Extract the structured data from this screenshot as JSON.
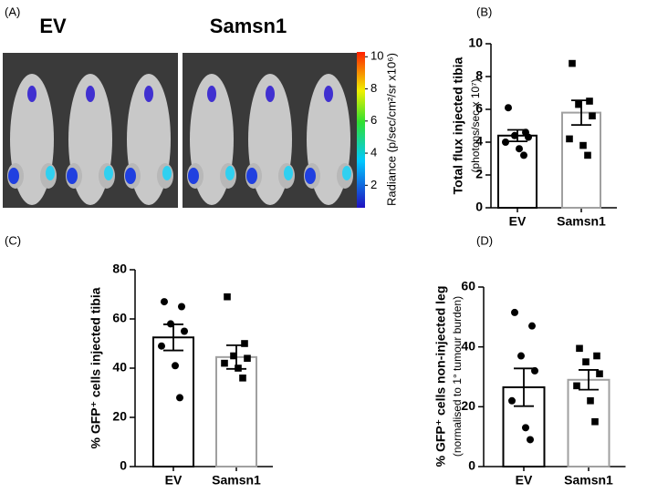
{
  "chart_data": [
    {
      "type": "colorbar",
      "label": "(A)",
      "group_labels": [
        "EV",
        "Samsn1"
      ],
      "ylabel": "Radiance (p/sec/cm²/sr x10⁶)",
      "ylim": [
        0.6,
        10.3
      ],
      "yticks": [
        2,
        4,
        6,
        8,
        10
      ]
    },
    {
      "type": "bar",
      "label": "(B)",
      "ylabel": "Total flux injected tibia",
      "ylabel_sub": "(photons/sec x 10⁷)",
      "categories": [
        "EV",
        "Samsn1"
      ],
      "values": [
        4.4,
        5.8
      ],
      "errors": [
        0.35,
        0.75
      ],
      "points": [
        [
          6.1,
          4.6,
          4.4,
          4.3,
          4.0,
          3.6,
          3.2
        ],
        [
          8.8,
          6.5,
          6.3,
          5.6,
          4.2,
          3.8,
          3.2
        ]
      ],
      "colors": [
        "#000000",
        "#a0a0a0"
      ],
      "markers": [
        "circle",
        "square"
      ],
      "ylim": [
        0,
        10
      ],
      "yticks": [
        0,
        2,
        4,
        6,
        8,
        10
      ]
    },
    {
      "type": "bar",
      "label": "(C)",
      "ylabel": "% GFP⁺ cells injected tibia",
      "categories": [
        "EV",
        "Samsn1"
      ],
      "values": [
        52.5,
        44.5
      ],
      "errors": [
        5.3,
        4.8
      ],
      "points": [
        [
          67,
          65,
          58,
          55,
          49,
          41,
          28
        ],
        [
          69,
          50,
          45,
          44,
          42,
          40,
          36
        ]
      ],
      "colors": [
        "#000000",
        "#a0a0a0"
      ],
      "markers": [
        "circle",
        "square"
      ],
      "ylim": [
        0,
        80
      ],
      "yticks": [
        0,
        20,
        40,
        60,
        80
      ]
    },
    {
      "type": "bar",
      "label": "(D)",
      "ylabel": "% GFP⁺ cells non-injected leg",
      "ylabel_sub": "(normalised to 1° tumour burden)",
      "categories": [
        "EV",
        "Samsn1"
      ],
      "values": [
        26.5,
        29
      ],
      "errors": [
        6.3,
        3.3
      ],
      "points": [
        [
          51.5,
          47,
          37,
          32,
          22,
          13,
          9
        ],
        [
          39.5,
          37,
          35,
          31,
          27,
          22,
          15
        ]
      ],
      "colors": [
        "#000000",
        "#a0a0a0"
      ],
      "markers": [
        "circle",
        "square"
      ],
      "ylim": [
        0,
        60
      ],
      "yticks": [
        0,
        20,
        40,
        60
      ]
    }
  ]
}
